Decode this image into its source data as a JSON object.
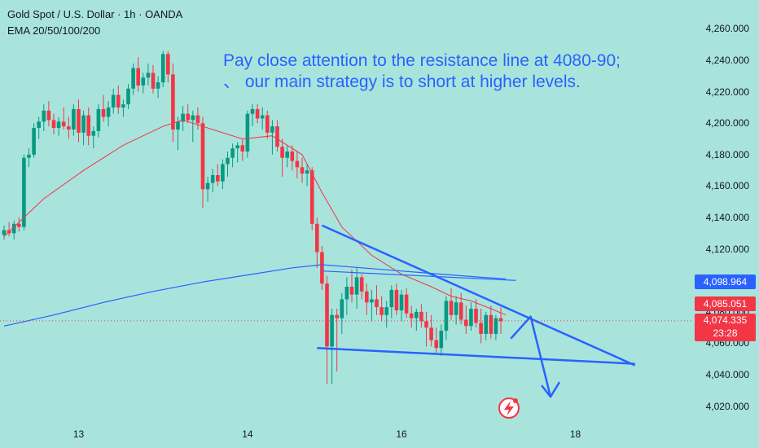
{
  "header": {
    "symbol_line": "Gold Spot / U.S. Dollar · 1h · OANDA",
    "indicator_line": "EMA 20/50/100/200"
  },
  "annotation": {
    "line1": "Pay close attention to the resistance line at 4080-90;",
    "line2": "、  our main strategy is to short at higher levels."
  },
  "colors": {
    "background": "#a8e4dc",
    "up": "#089981",
    "down": "#f23645",
    "ema_short": "#f23645",
    "ema_long": "#2962ff",
    "drawing": "#2962ff",
    "price_line": "#f23645"
  },
  "icons": [
    "lightning-icon"
  ],
  "price_tags": {
    "ema": "4,098.964",
    "reference": "4,085.051",
    "current": "4,074.335",
    "countdown": "23:28"
  },
  "chart_data": {
    "type": "candlestick",
    "ylim": [
      4010,
      4268
    ],
    "yticks": [
      4020,
      4040,
      4060,
      4080,
      4100,
      4120,
      4140,
      4160,
      4180,
      4200,
      4220,
      4240,
      4260
    ],
    "ytick_labels": [
      "4,020.000",
      "4,040.000",
      "4,060.000",
      "4,080.000",
      "4,100.000",
      "4,120.000",
      "4,140.000",
      "4,160.000",
      "4,180.000",
      "4,200.000",
      "4,220.000",
      "4,240.000",
      "4,260.000"
    ],
    "xticks": [
      {
        "label": "13",
        "bar": 15
      },
      {
        "label": "14",
        "bar": 49
      },
      {
        "label": "16",
        "bar": 80
      },
      {
        "label": "18",
        "bar": 115
      }
    ],
    "ohlc": [
      [
        4129,
        4135,
        4126,
        4132
      ],
      [
        4132,
        4137,
        4128,
        4130
      ],
      [
        4130,
        4138,
        4126,
        4136
      ],
      [
        4136,
        4140,
        4131,
        4134
      ],
      [
        4134,
        4180,
        4132,
        4178
      ],
      [
        4178,
        4184,
        4172,
        4180
      ],
      [
        4180,
        4200,
        4178,
        4197
      ],
      [
        4197,
        4204,
        4190,
        4201
      ],
      [
        4201,
        4212,
        4195,
        4208
      ],
      [
        4208,
        4214,
        4198,
        4202
      ],
      [
        4202,
        4206,
        4193,
        4197
      ],
      [
        4197,
        4204,
        4192,
        4201
      ],
      [
        4201,
        4210,
        4196,
        4198
      ],
      [
        4198,
        4204,
        4190,
        4196
      ],
      [
        4196,
        4212,
        4192,
        4209
      ],
      [
        4209,
        4215,
        4188,
        4194
      ],
      [
        4194,
        4208,
        4186,
        4205
      ],
      [
        4205,
        4210,
        4186,
        4192
      ],
      [
        4192,
        4198,
        4184,
        4195
      ],
      [
        4195,
        4212,
        4191,
        4209
      ],
      [
        4209,
        4218,
        4201,
        4204
      ],
      [
        4204,
        4214,
        4198,
        4210
      ],
      [
        4210,
        4222,
        4206,
        4218
      ],
      [
        4218,
        4224,
        4206,
        4210
      ],
      [
        4210,
        4215,
        4204,
        4212
      ],
      [
        4212,
        4225,
        4209,
        4222
      ],
      [
        4222,
        4238,
        4218,
        4235
      ],
      [
        4235,
        4242,
        4220,
        4224
      ],
      [
        4224,
        4232,
        4219,
        4229
      ],
      [
        4229,
        4238,
        4224,
        4232
      ],
      [
        4232,
        4237,
        4219,
        4222
      ],
      [
        4222,
        4230,
        4216,
        4226
      ],
      [
        4226,
        4246,
        4223,
        4244
      ],
      [
        4244,
        4246,
        4226,
        4231
      ],
      [
        4231,
        4238,
        4188,
        4196
      ],
      [
        4196,
        4204,
        4183,
        4201
      ],
      [
        4201,
        4211,
        4195,
        4206
      ],
      [
        4206,
        4212,
        4200,
        4202
      ],
      [
        4202,
        4208,
        4188,
        4205
      ],
      [
        4205,
        4210,
        4196,
        4200
      ],
      [
        4200,
        4204,
        4146,
        4158
      ],
      [
        4158,
        4166,
        4150,
        4162
      ],
      [
        4162,
        4171,
        4156,
        4167
      ],
      [
        4167,
        4174,
        4160,
        4163
      ],
      [
        4163,
        4177,
        4158,
        4174
      ],
      [
        4174,
        4182,
        4166,
        4178
      ],
      [
        4178,
        4187,
        4172,
        4184
      ],
      [
        4184,
        4188,
        4175,
        4186
      ],
      [
        4186,
        4190,
        4176,
        4182
      ],
      [
        4182,
        4208,
        4178,
        4206
      ],
      [
        4206,
        4212,
        4198,
        4209
      ],
      [
        4209,
        4212,
        4200,
        4203
      ],
      [
        4203,
        4210,
        4196,
        4205
      ],
      [
        4205,
        4208,
        4190,
        4194
      ],
      [
        4194,
        4202,
        4180,
        4198
      ],
      [
        4198,
        4202,
        4182,
        4185
      ],
      [
        4185,
        4190,
        4166,
        4178
      ],
      [
        4178,
        4186,
        4172,
        4182
      ],
      [
        4182,
        4186,
        4170,
        4176
      ],
      [
        4176,
        4182,
        4165,
        4172
      ],
      [
        4172,
        4178,
        4162,
        4168
      ],
      [
        4168,
        4174,
        4160,
        4170
      ],
      [
        4170,
        4172,
        4132,
        4136
      ],
      [
        4136,
        4140,
        4108,
        4118
      ],
      [
        4118,
        4122,
        4094,
        4098
      ],
      [
        4098,
        4103,
        4034,
        4058
      ],
      [
        4058,
        4082,
        4034,
        4078
      ],
      [
        4078,
        4082,
        4042,
        4076
      ],
      [
        4076,
        4092,
        4066,
        4088
      ],
      [
        4088,
        4102,
        4078,
        4096
      ],
      [
        4096,
        4107,
        4086,
        4091
      ],
      [
        4091,
        4108,
        4082,
        4102
      ],
      [
        4102,
        4104,
        4088,
        4093
      ],
      [
        4093,
        4098,
        4078,
        4086
      ],
      [
        4086,
        4094,
        4074,
        4088
      ],
      [
        4088,
        4097,
        4078,
        4083
      ],
      [
        4083,
        4090,
        4074,
        4078
      ],
      [
        4078,
        4087,
        4070,
        4083
      ],
      [
        4083,
        4097,
        4076,
        4094
      ],
      [
        4094,
        4098,
        4078,
        4081
      ],
      [
        4081,
        4094,
        4074,
        4091
      ],
      [
        4091,
        4095,
        4076,
        4079
      ],
      [
        4079,
        4084,
        4070,
        4076
      ],
      [
        4076,
        4082,
        4068,
        4080
      ],
      [
        4080,
        4085,
        4070,
        4074
      ],
      [
        4074,
        4080,
        4058,
        4070
      ],
      [
        4070,
        4078,
        4058,
        4062
      ],
      [
        4062,
        4070,
        4054,
        4057
      ],
      [
        4057,
        4072,
        4052,
        4068
      ],
      [
        4068,
        4090,
        4062,
        4087
      ],
      [
        4087,
        4095,
        4075,
        4078
      ],
      [
        4078,
        4090,
        4072,
        4086
      ],
      [
        4086,
        4092,
        4072,
        4075
      ],
      [
        4075,
        4084,
        4066,
        4071
      ],
      [
        4071,
        4086,
        4068,
        4082
      ],
      [
        4082,
        4088,
        4070,
        4073
      ],
      [
        4073,
        4082,
        4060,
        4066
      ],
      [
        4066,
        4080,
        4062,
        4078
      ],
      [
        4078,
        4084,
        4063,
        4066
      ],
      [
        4066,
        4078,
        4062,
        4076
      ],
      [
        4076,
        4083,
        4066,
        4074
      ]
    ],
    "ema_short": [
      [
        0,
        4128
      ],
      [
        8,
        4152
      ],
      [
        16,
        4170
      ],
      [
        24,
        4186
      ],
      [
        32,
        4198
      ],
      [
        36,
        4202
      ],
      [
        42,
        4196
      ],
      [
        48,
        4190
      ],
      [
        54,
        4192
      ],
      [
        60,
        4180
      ],
      [
        64,
        4156
      ],
      [
        68,
        4134
      ],
      [
        74,
        4116
      ],
      [
        80,
        4104
      ],
      [
        86,
        4096
      ],
      [
        90,
        4090
      ],
      [
        94,
        4087
      ],
      [
        98,
        4082
      ],
      [
        101,
        4078
      ]
    ],
    "ema_long": [
      [
        0,
        4071
      ],
      [
        10,
        4078
      ],
      [
        20,
        4086
      ],
      [
        30,
        4093
      ],
      [
        40,
        4099
      ],
      [
        50,
        4104
      ],
      [
        58,
        4108
      ],
      [
        64,
        4110
      ],
      [
        72,
        4108
      ],
      [
        80,
        4106
      ],
      [
        88,
        4104
      ],
      [
        96,
        4102
      ],
      [
        101,
        4101
      ]
    ],
    "drawings": [
      {
        "name": "resistance-trendline",
        "from": [
          64,
          4135
        ],
        "to": [
          127,
          4046
        ]
      },
      {
        "name": "support-trendline",
        "from": [
          63,
          4057
        ],
        "to": [
          127,
          4047
        ]
      },
      {
        "name": "zigzag-arrow-path",
        "points": [
          [
            102,
            4063
          ],
          [
            106,
            4077
          ],
          [
            110,
            4026
          ]
        ]
      },
      {
        "name": "horizontal-ray",
        "from": [
          64,
          4106
        ],
        "to": [
          103,
          4100
        ]
      }
    ],
    "price_line": 4074.335
  }
}
